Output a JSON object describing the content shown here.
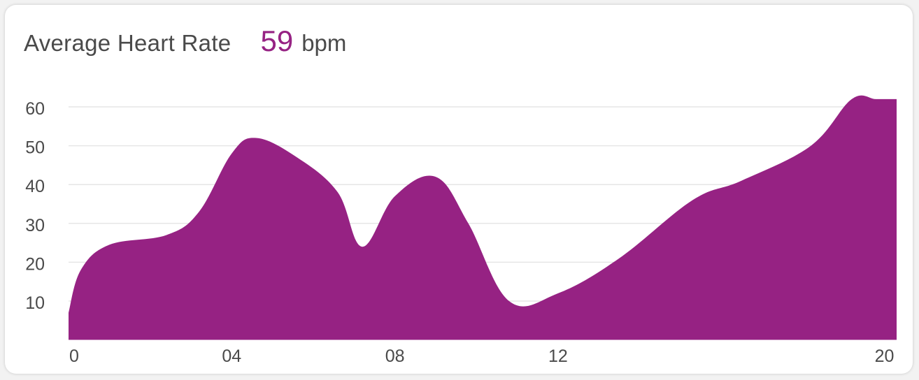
{
  "header": {
    "title": "Average Heart Rate",
    "value": "59",
    "unit": "bpm"
  },
  "colors": {
    "accent": "#962283",
    "text": "#4a4a4a",
    "grid": "#e6e6e6"
  },
  "chart_data": {
    "type": "area",
    "title": "Average Heart Rate",
    "xlabel": "",
    "ylabel": "",
    "grid": true,
    "legend": "none",
    "ylim": [
      0,
      60
    ],
    "xlim": [
      0,
      20.3
    ],
    "x_ticks": [
      {
        "value": 0,
        "label": "0"
      },
      {
        "value": 4,
        "label": "04"
      },
      {
        "value": 8,
        "label": "08"
      },
      {
        "value": 12,
        "label": "12"
      },
      {
        "value": 20,
        "label": "20"
      }
    ],
    "y_ticks": [
      10,
      20,
      30,
      40,
      50,
      60
    ],
    "x": [
      0,
      0.3,
      1.0,
      2.4,
      3.2,
      4.0,
      4.6,
      5.6,
      6.6,
      7.2,
      8.0,
      9.0,
      9.8,
      10.8,
      12.0,
      13.5,
      15.3,
      16.5,
      18.2,
      19.2,
      19.8,
      20.3
    ],
    "values": [
      7,
      18,
      24.5,
      27,
      33,
      48,
      52,
      47,
      38,
      24,
      37,
      42,
      30,
      10,
      12,
      21,
      36,
      41,
      50,
      62,
      62,
      62
    ]
  }
}
